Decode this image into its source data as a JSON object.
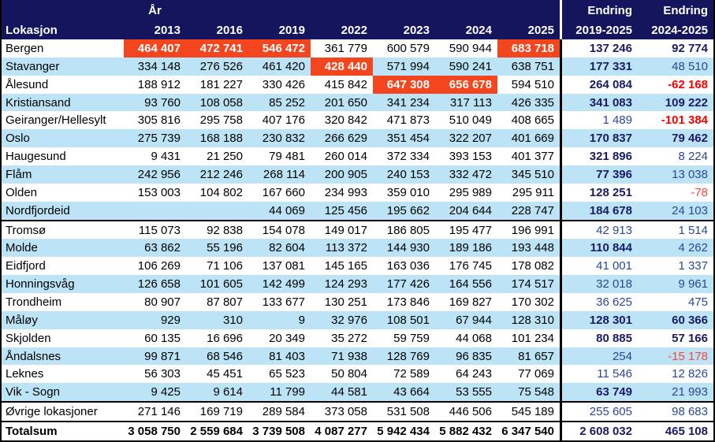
{
  "table": {
    "year_field_label": "År",
    "location_header": "Lokasjon",
    "years": [
      "2013",
      "2016",
      "2019",
      "2022",
      "2023",
      "2024",
      "2025"
    ],
    "endring1": {
      "line1": "Endring",
      "line2": "2019-2025"
    },
    "endring2": {
      "line1": "Endring",
      "line2": "2024-2025"
    },
    "rows": [
      {
        "name": "Bergen",
        "values": [
          "464 407",
          "472 741",
          "546 472",
          "361 779",
          "600 579",
          "590 944",
          "683 718"
        ],
        "hl": [
          0,
          1,
          2,
          6
        ],
        "e1": {
          "v": "137 246",
          "s": "b"
        },
        "e2": {
          "v": "92 774",
          "s": "b"
        }
      },
      {
        "name": "Stavanger",
        "values": [
          "334 148",
          "276 526",
          "461 420",
          "428 440",
          "571 994",
          "590 241",
          "638 751"
        ],
        "hl": [
          3
        ],
        "e1": {
          "v": "177 331",
          "s": "b"
        },
        "e2": {
          "v": "48 510",
          "s": "r"
        }
      },
      {
        "name": "Ålesund",
        "values": [
          "188 912",
          "181 227",
          "330 426",
          "415 842",
          "647 308",
          "656 678",
          "594 510"
        ],
        "hl": [
          4,
          5
        ],
        "e1": {
          "v": "264 084",
          "s": "b"
        },
        "e2": {
          "v": "-62 168",
          "s": "nb"
        }
      },
      {
        "name": "Kristiansand",
        "values": [
          "93 760",
          "108 058",
          "85 252",
          "201 650",
          "341 234",
          "317 113",
          "426 335"
        ],
        "hl": [],
        "e1": {
          "v": "341 083",
          "s": "b"
        },
        "e2": {
          "v": "109 222",
          "s": "b"
        }
      },
      {
        "name": "Geiranger/Hellesylt",
        "values": [
          "305 816",
          "295 758",
          "407 176",
          "320 842",
          "471 873",
          "510 049",
          "408 665"
        ],
        "hl": [],
        "e1": {
          "v": "1 489",
          "s": "r"
        },
        "e2": {
          "v": "-101 384",
          "s": "nb"
        }
      },
      {
        "name": "Oslo",
        "values": [
          "275 739",
          "168 188",
          "230 832",
          "266 629",
          "351 454",
          "322 207",
          "401 669"
        ],
        "hl": [],
        "e1": {
          "v": "170 837",
          "s": "b"
        },
        "e2": {
          "v": "79 462",
          "s": "b"
        }
      },
      {
        "name": "Haugesund",
        "values": [
          "9 431",
          "21 250",
          "79 481",
          "260 014",
          "372 334",
          "393 153",
          "401 377"
        ],
        "hl": [],
        "e1": {
          "v": "321 896",
          "s": "b"
        },
        "e2": {
          "v": "8 224",
          "s": "r"
        }
      },
      {
        "name": "Flåm",
        "values": [
          "242 956",
          "212 246",
          "268 114",
          "200 905",
          "240 153",
          "332 472",
          "345 510"
        ],
        "hl": [],
        "e1": {
          "v": "77 396",
          "s": "b"
        },
        "e2": {
          "v": "13 038",
          "s": "r"
        }
      },
      {
        "name": "Olden",
        "values": [
          "153 003",
          "104 802",
          "167 660",
          "234 993",
          "359 010",
          "295 989",
          "295 911"
        ],
        "hl": [],
        "e1": {
          "v": "128 251",
          "s": "b"
        },
        "e2": {
          "v": "-78",
          "s": "nr"
        }
      },
      {
        "name": "Nordfjordeid",
        "values": [
          "",
          "",
          "44 069",
          "125 456",
          "195 662",
          "204 644",
          "228 747"
        ],
        "hl": [],
        "e1": {
          "v": "184 678",
          "s": "b"
        },
        "e2": {
          "v": "24 103",
          "s": "r"
        },
        "sep_below": true
      },
      {
        "name": "Tromsø",
        "values": [
          "115 073",
          "92 838",
          "154 078",
          "149 017",
          "186 805",
          "195 477",
          "196 991"
        ],
        "hl": [],
        "e1": {
          "v": "42 913",
          "s": "r"
        },
        "e2": {
          "v": "1 514",
          "s": "r"
        }
      },
      {
        "name": "Molde",
        "values": [
          "63 862",
          "55 196",
          "82 604",
          "113 372",
          "144 930",
          "189 186",
          "193 448"
        ],
        "hl": [],
        "e1": {
          "v": "110 844",
          "s": "b"
        },
        "e2": {
          "v": "4 262",
          "s": "r"
        }
      },
      {
        "name": "Eidfjord",
        "values": [
          "106 269",
          "71 106",
          "137 081",
          "145 165",
          "163 036",
          "176 745",
          "178 082"
        ],
        "hl": [],
        "e1": {
          "v": "41 001",
          "s": "r"
        },
        "e2": {
          "v": "1 337",
          "s": "r"
        }
      },
      {
        "name": "Honningsvåg",
        "values": [
          "126 658",
          "101 605",
          "142 499",
          "124 293",
          "177 426",
          "164 556",
          "174 517"
        ],
        "hl": [],
        "e1": {
          "v": "32 018",
          "s": "r"
        },
        "e2": {
          "v": "9 961",
          "s": "r"
        }
      },
      {
        "name": "Trondheim",
        "values": [
          "80 907",
          "87 807",
          "133 677",
          "130 251",
          "173 846",
          "169 827",
          "170 302"
        ],
        "hl": [],
        "e1": {
          "v": "36 625",
          "s": "r"
        },
        "e2": {
          "v": "475",
          "s": "r"
        }
      },
      {
        "name": "Måløy",
        "values": [
          "929",
          "310",
          "9",
          "32 976",
          "108 501",
          "67 944",
          "128 310"
        ],
        "hl": [],
        "e1": {
          "v": "128 301",
          "s": "b"
        },
        "e2": {
          "v": "60 366",
          "s": "b"
        }
      },
      {
        "name": "Skjolden",
        "values": [
          "60 135",
          "16 696",
          "20 349",
          "35 272",
          "59 759",
          "44 068",
          "101 234"
        ],
        "hl": [],
        "e1": {
          "v": "80 885",
          "s": "b"
        },
        "e2": {
          "v": "57 166",
          "s": "b"
        }
      },
      {
        "name": "Åndalsnes",
        "values": [
          "99 871",
          "68 546",
          "81 403",
          "71 938",
          "128 769",
          "96 835",
          "81 657"
        ],
        "hl": [],
        "e1": {
          "v": "254",
          "s": "r"
        },
        "e2": {
          "v": "-15 178",
          "s": "nr"
        }
      },
      {
        "name": "Leknes",
        "values": [
          "56 303",
          "45 451",
          "65 523",
          "50 804",
          "72 589",
          "64 243",
          "77 069"
        ],
        "hl": [],
        "e1": {
          "v": "11 546",
          "s": "r"
        },
        "e2": {
          "v": "12 826",
          "s": "r"
        }
      },
      {
        "name": "Vik - Sogn",
        "values": [
          "9 425",
          "9 614",
          "11 799",
          "44 581",
          "43 664",
          "53 555",
          "75 548"
        ],
        "hl": [],
        "e1": {
          "v": "63 749",
          "s": "b"
        },
        "e2": {
          "v": "21 993",
          "s": "r"
        },
        "sep_below": true
      },
      {
        "name": "Øvrige lokasjoner",
        "values": [
          "271 146",
          "169 719",
          "289 584",
          "373 058",
          "531 508",
          "446 506",
          "545 189"
        ],
        "hl": [],
        "e1": {
          "v": "255 605",
          "s": "r"
        },
        "e2": {
          "v": "98 683",
          "s": "r"
        },
        "sep_below": true
      },
      {
        "name": "Totalsum",
        "values": [
          "3 058 750",
          "2 559 684",
          "3 739 508",
          "4 087 277",
          "5 942 434",
          "5 882 432",
          "6 347 540"
        ],
        "hl": [],
        "e1": {
          "v": "2 608 032",
          "s": "b"
        },
        "e2": {
          "v": "465 108",
          "s": "b"
        },
        "total": true
      }
    ]
  },
  "colors": {
    "header_bg": "#14155C",
    "header_text": "#FFFFFF",
    "highlight_bg": "#F3461F",
    "highlight_text": "#FFFFFF",
    "stripe_bg": "#BCE4F6",
    "body_text": "#000000",
    "endring_bold": "#1A1A66",
    "endring_regular": "#2C4697",
    "negative_bold": "#FA0000",
    "negative_regular": "#FF4638",
    "grid_border": "#000000"
  }
}
